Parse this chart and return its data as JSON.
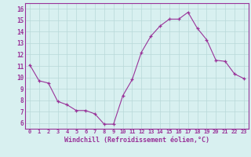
{
  "x": [
    0,
    1,
    2,
    3,
    4,
    5,
    6,
    7,
    8,
    9,
    10,
    11,
    12,
    13,
    14,
    15,
    16,
    17,
    18,
    19,
    20,
    21,
    22,
    23
  ],
  "y": [
    11.1,
    9.7,
    9.5,
    7.9,
    7.6,
    7.1,
    7.1,
    6.8,
    5.9,
    5.9,
    8.4,
    9.8,
    12.2,
    13.6,
    14.5,
    15.1,
    15.1,
    15.7,
    14.3,
    13.3,
    11.5,
    11.4,
    10.3,
    9.9
  ],
  "line_color": "#993399",
  "marker": "+",
  "bg_color": "#d8f0f0",
  "grid_color": "#b8d8d8",
  "xlabel": "Windchill (Refroidissement éolien,°C)",
  "xlabel_color": "#993399",
  "ylabel_ticks": [
    6,
    7,
    8,
    9,
    10,
    11,
    12,
    13,
    14,
    15,
    16
  ],
  "xticks": [
    0,
    1,
    2,
    3,
    4,
    5,
    6,
    7,
    8,
    9,
    10,
    11,
    12,
    13,
    14,
    15,
    16,
    17,
    18,
    19,
    20,
    21,
    22,
    23
  ],
  "ylim": [
    5.5,
    16.5
  ],
  "xlim": [
    -0.5,
    23.5
  ]
}
